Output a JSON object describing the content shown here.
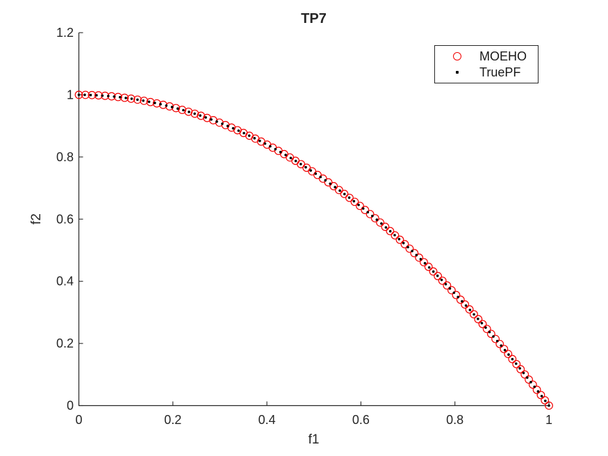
{
  "figure": {
    "title": "TP7",
    "xlabel": "f1",
    "ylabel": "f2",
    "background": "#ffffff",
    "axis_color": "#262626"
  },
  "legend": {
    "position": "northeast",
    "entries": [
      {
        "label": "MOEHO",
        "marker": "open-circle",
        "color": "#f20000"
      },
      {
        "label": "TruePF",
        "marker": "dot",
        "color": "#000000"
      }
    ]
  },
  "chart_data": {
    "type": "scatter",
    "title": "TP7",
    "xlabel": "f1",
    "ylabel": "f2",
    "xlim": [
      0,
      1
    ],
    "ylim": [
      0,
      1.2
    ],
    "grid": false,
    "box": "off",
    "legend_position": "northeast",
    "xticks": {
      "values": [
        0,
        0.2,
        0.4,
        0.6,
        0.8,
        1
      ],
      "labels": [
        "0",
        "0.2",
        "0.4",
        "0.6",
        "0.8",
        "1"
      ]
    },
    "yticks": {
      "values": [
        0,
        0.2,
        0.4,
        0.6,
        0.8,
        1,
        1.2
      ],
      "labels": [
        "0",
        "0.2",
        "0.4",
        "0.6",
        "0.8",
        "1",
        "1.2"
      ]
    },
    "pareto_front_relation": "f2 = 1 - f1^2",
    "curve": {
      "intercept": 1,
      "coef": -1,
      "power": 2
    },
    "series": [
      {
        "name": "MOEHO",
        "marker": "open-circle",
        "color": "#f20000",
        "n_points": 90,
        "spacing": "uniform-arc-length",
        "f1": [
          0,
          0.0139,
          0.0279,
          0.0418,
          0.0557,
          0.0696,
          0.0834,
          0.0973,
          0.1111,
          0.1248,
          0.1386,
          0.1523,
          0.1659,
          0.1794,
          0.193,
          0.2065,
          0.2198,
          0.2332,
          0.2466,
          0.2597,
          0.2728,
          0.2859,
          0.299,
          0.3119,
          0.3247,
          0.3375,
          0.3503,
          0.3628,
          0.3753,
          0.3878,
          0.4003,
          0.4124,
          0.4246,
          0.4367,
          0.4489,
          0.4607,
          0.4725,
          0.4844,
          0.4962,
          0.5077,
          0.5192,
          0.5307,
          0.5421,
          0.5535,
          0.5646,
          0.5757,
          0.5868,
          0.5979,
          0.6087,
          0.6195,
          0.6302,
          0.641,
          0.6517,
          0.6621,
          0.6725,
          0.6829,
          0.6933,
          0.7036,
          0.7137,
          0.7238,
          0.7339,
          0.7439,
          0.7539,
          0.7637,
          0.7734,
          0.7832,
          0.7929,
          0.8026,
          0.812,
          0.8214,
          0.8309,
          0.8403,
          0.8497,
          0.8589,
          0.868,
          0.8771,
          0.8863,
          0.8954,
          0.9044,
          0.9132,
          0.9221,
          0.9309,
          0.9397,
          0.9486,
          0.9572,
          0.9657,
          0.9743,
          0.9829,
          0.9914,
          1
        ]
      },
      {
        "name": "TruePF",
        "marker": "dot",
        "color": "#000000",
        "n_points": 100,
        "spacing": "uniform-arc-length",
        "f1": [
          0,
          0.0125,
          0.025,
          0.0376,
          0.0501,
          0.0625,
          0.075,
          0.0875,
          0.0999,
          0.1123,
          0.1247,
          0.137,
          0.1494,
          0.1616,
          0.1738,
          0.186,
          0.1982,
          0.2103,
          0.2223,
          0.2343,
          0.2463,
          0.2581,
          0.2699,
          0.2817,
          0.2935,
          0.3051,
          0.3166,
          0.3282,
          0.3397,
          0.3512,
          0.3624,
          0.3736,
          0.3849,
          0.3961,
          0.4071,
          0.4181,
          0.429,
          0.4399,
          0.4508,
          0.4614,
          0.4721,
          0.4827,
          0.4933,
          0.5038,
          0.5141,
          0.5244,
          0.5347,
          0.545,
          0.5552,
          0.5651,
          0.5751,
          0.5851,
          0.5951,
          0.6049,
          0.6146,
          0.6243,
          0.6339,
          0.6436,
          0.6532,
          0.6625,
          0.6719,
          0.6813,
          0.6906,
          0.7,
          0.709,
          0.7181,
          0.7272,
          0.7362,
          0.7453,
          0.7542,
          0.763,
          0.7717,
          0.7805,
          0.7893,
          0.798,
          0.8066,
          0.8151,
          0.8235,
          0.832,
          0.8405,
          0.849,
          0.8572,
          0.8654,
          0.8736,
          0.8818,
          0.8901,
          0.8983,
          0.9063,
          0.9142,
          0.9222,
          0.9301,
          0.9381,
          0.946,
          0.9538,
          0.9615,
          0.9692,
          0.9769,
          0.9846,
          0.9923,
          1
        ]
      }
    ]
  }
}
